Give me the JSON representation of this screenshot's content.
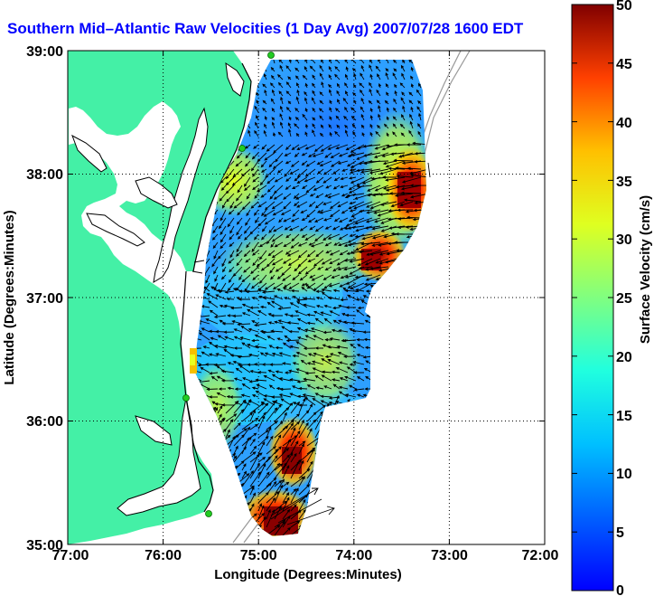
{
  "title": "Southern Mid–Atlantic Raw Velocities (1 Day Avg) 2007/07/28 1600 EDT",
  "x_axis": {
    "label": "Longitude (Degrees:Minutes)",
    "ticks": [
      "77:00",
      "76:00",
      "75:00",
      "74:00",
      "73:00",
      "72:00"
    ]
  },
  "y_axis": {
    "label": "Latitude (Degrees:Minutes)",
    "ticks": [
      "39:00",
      "38:00",
      "37:00",
      "36:00",
      "35:00"
    ]
  },
  "colorbar": {
    "label": "Surface Velocity (cm/s)",
    "ticks": [
      "50",
      "45",
      "40",
      "35",
      "30",
      "25",
      "20",
      "15",
      "10",
      "5",
      "0"
    ],
    "min": 0,
    "max": 50
  },
  "colors": {
    "land": "#44f0a6",
    "title": "#0000ff",
    "station": "#22cc22"
  },
  "chart_data": {
    "type": "heatmap",
    "title": "Southern Mid–Atlantic Raw Velocities (1 Day Avg) 2007/07/28 1600 EDT",
    "xlabel": "Longitude (Degrees:Minutes)",
    "ylabel": "Latitude (Degrees:Minutes)",
    "xlim": [
      -77.0,
      -72.0
    ],
    "ylim": [
      35.0,
      39.0
    ],
    "grid": true,
    "colorbar_label": "Surface Velocity (cm/s)",
    "colorbar_range": [
      0,
      50
    ],
    "features": [
      {
        "name": "offshore speed maximum",
        "lon": -73.3,
        "lat": 37.9,
        "speed": 45
      },
      {
        "name": "speed maximum near 37.2N",
        "lon": -73.8,
        "lat": 37.3,
        "speed": 45
      },
      {
        "name": "speed maximum near 35.7N",
        "lon": -74.7,
        "lat": 35.6,
        "speed": 48
      },
      {
        "name": "speed maximum near 35.1N",
        "lon": -74.8,
        "lat": 35.1,
        "speed": 50
      },
      {
        "name": "low-speed region",
        "lon": -74.5,
        "lat": 38.6,
        "speed": 5
      }
    ]
  }
}
